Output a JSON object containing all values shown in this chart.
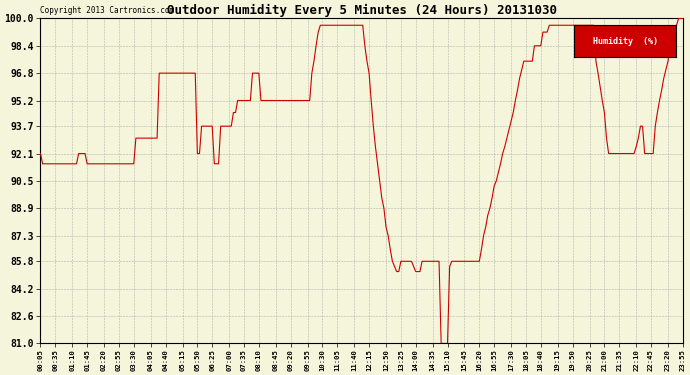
{
  "title": "Outdoor Humidity Every 5 Minutes (24 Hours) 20131030",
  "copyright": "Copyright 2013 Cartronics.com",
  "legend_label": "Humidity  (%)",
  "legend_bg": "#cc0000",
  "legend_text_color": "#ffffff",
  "line_color": "#cc0000",
  "bg_color": "#f5f5dc",
  "grid_color": "#888888",
  "ylim": [
    81.0,
    100.0
  ],
  "yticks": [
    81.0,
    82.6,
    84.2,
    85.8,
    87.3,
    88.9,
    90.5,
    92.1,
    93.7,
    95.2,
    96.8,
    98.4,
    100.0
  ],
  "humidity_values": [
    92.1,
    91.5,
    91.5,
    91.5,
    91.5,
    91.5,
    91.5,
    91.5,
    91.5,
    91.5,
    91.5,
    91.5,
    91.5,
    91.5,
    91.5,
    91.5,
    91.5,
    91.5,
    92.1,
    92.1,
    92.1,
    92.1,
    91.5,
    91.5,
    91.5,
    91.5,
    91.5,
    91.5,
    91.5,
    91.5,
    91.5,
    91.5,
    91.5,
    91.5,
    91.5,
    91.5,
    91.5,
    91.5,
    91.5,
    91.5,
    91.5,
    91.5,
    91.5,
    91.5,
    91.5,
    93.0,
    93.0,
    93.0,
    93.0,
    93.0,
    93.0,
    93.0,
    93.0,
    93.0,
    93.0,
    93.0,
    96.8,
    96.8,
    96.8,
    96.8,
    96.8,
    96.8,
    96.8,
    96.8,
    96.8,
    96.8,
    96.8,
    96.8,
    96.8,
    96.8,
    96.8,
    96.8,
    96.8,
    96.8,
    92.1,
    92.1,
    93.7,
    93.7,
    93.7,
    93.7,
    93.7,
    93.7,
    91.5,
    91.5,
    91.5,
    93.7,
    93.7,
    93.7,
    93.7,
    93.7,
    93.7,
    94.5,
    94.5,
    95.2,
    95.2,
    95.2,
    95.2,
    95.2,
    95.2,
    95.2,
    96.8,
    96.8,
    96.8,
    96.8,
    95.2,
    95.2,
    95.2,
    95.2,
    95.2,
    95.2,
    95.2,
    95.2,
    95.2,
    95.2,
    95.2,
    95.2,
    95.2,
    95.2,
    95.2,
    95.2,
    95.2,
    95.2,
    95.2,
    95.2,
    95.2,
    95.2,
    95.2,
    95.2,
    96.8,
    97.5,
    98.4,
    99.2,
    99.6,
    99.6,
    99.6,
    99.6,
    99.6,
    99.6,
    99.6,
    99.6,
    99.6,
    99.6,
    99.6,
    99.6,
    99.6,
    99.6,
    99.6,
    99.6,
    99.6,
    99.6,
    99.6,
    99.6,
    99.6,
    98.4,
    97.5,
    96.8,
    95.2,
    93.7,
    92.5,
    91.5,
    90.5,
    89.5,
    88.9,
    87.8,
    87.3,
    86.5,
    85.8,
    85.5,
    85.2,
    85.2,
    85.8,
    85.8,
    85.8,
    85.8,
    85.8,
    85.8,
    85.5,
    85.2,
    85.2,
    85.2,
    85.8,
    85.8,
    85.8,
    85.8,
    85.8,
    85.8,
    85.8,
    85.8,
    85.8,
    81.0,
    81.0,
    81.0,
    81.0,
    85.5,
    85.8,
    85.8,
    85.8,
    85.8,
    85.8,
    85.8,
    85.8,
    85.8,
    85.8,
    85.8,
    85.8,
    85.8,
    85.8,
    85.8,
    86.5,
    87.3,
    87.8,
    88.5,
    88.9,
    89.5,
    90.2,
    90.5,
    91.0,
    91.5,
    92.1,
    92.5,
    93.0,
    93.5,
    94.0,
    94.5,
    95.2,
    95.8,
    96.5,
    97.0,
    97.5,
    97.5,
    97.5,
    97.5,
    97.5,
    98.4,
    98.4,
    98.4,
    98.4,
    99.2,
    99.2,
    99.2,
    99.6,
    99.6,
    99.6,
    99.6,
    99.6,
    99.6,
    99.6,
    99.6,
    99.6,
    99.6,
    99.6,
    99.6,
    99.6,
    99.6,
    99.6,
    99.6,
    99.6,
    99.6,
    99.6,
    99.6,
    99.6,
    99.6,
    97.5,
    96.8,
    96.0,
    95.2,
    94.5,
    93.0,
    92.1,
    92.1,
    92.1,
    92.1,
    92.1,
    92.1,
    92.1,
    92.1,
    92.1,
    92.1,
    92.1,
    92.1,
    92.1,
    92.5,
    93.0,
    93.7,
    93.7,
    92.1,
    92.1,
    92.1,
    92.1,
    92.1,
    93.7,
    94.5,
    95.2,
    95.8,
    96.5,
    97.0,
    97.5,
    98.4,
    98.4,
    99.2,
    99.6,
    100.0,
    100.0,
    100.0
  ],
  "xtick_labels": [
    "00:05",
    "00:35",
    "01:10",
    "01:45",
    "02:20",
    "02:55",
    "03:30",
    "04:05",
    "04:40",
    "05:15",
    "05:50",
    "06:25",
    "07:00",
    "07:35",
    "08:10",
    "08:45",
    "09:20",
    "09:55",
    "10:30",
    "11:05",
    "11:40",
    "12:15",
    "12:50",
    "13:25",
    "14:00",
    "14:35",
    "15:10",
    "15:45",
    "16:20",
    "16:55",
    "17:30",
    "18:05",
    "18:40",
    "19:15",
    "19:50",
    "20:25",
    "21:00",
    "21:35",
    "22:10",
    "22:45",
    "23:20",
    "23:55"
  ]
}
